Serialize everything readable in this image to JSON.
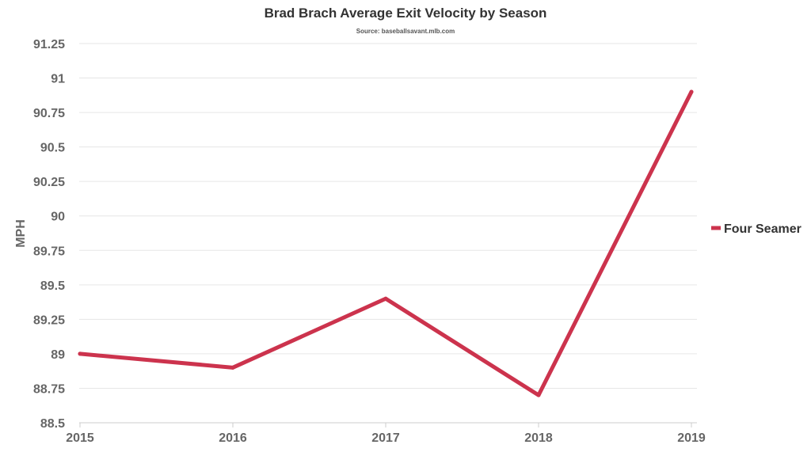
{
  "chart_data": {
    "type": "line",
    "title": "Brad Brach Average Exit Velocity by Season",
    "subtitle": "Source: baseballsavant.mlb.com",
    "xlabel": "",
    "ylabel": "MPH",
    "categories": [
      "2015",
      "2016",
      "2017",
      "2018",
      "2019"
    ],
    "yticks": [
      "91.25",
      "91",
      "90.75",
      "90.5",
      "90.25",
      "90",
      "89.75",
      "89.5",
      "89.25",
      "89",
      "88.75",
      "88.5"
    ],
    "ylim": [
      88.5,
      91.25
    ],
    "grid": true,
    "legend_position": "right",
    "series": [
      {
        "name": "Four Seamer",
        "color": "#cc334d",
        "values": [
          89.0,
          88.9,
          89.4,
          88.7,
          90.9
        ]
      }
    ]
  }
}
